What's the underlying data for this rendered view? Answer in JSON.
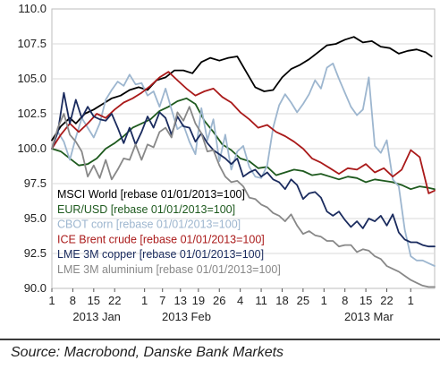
{
  "source": "Source: Macrobond, Danske Bank Markets",
  "chart_data": {
    "type": "line",
    "ylim": [
      90,
      110
    ],
    "y_ticks": [
      "110.0",
      "107.5",
      "105.0",
      "102.5",
      "100.0",
      "97.5",
      "95.0",
      "92.5",
      "90.0"
    ],
    "y_tick_values": [
      110,
      107.5,
      105,
      102.5,
      100,
      97.5,
      95,
      92.5,
      90
    ],
    "x_ticks": [
      {
        "day": 1,
        "label": "1"
      },
      {
        "day": 8,
        "label": "8"
      },
      {
        "day": 15,
        "label": "15"
      },
      {
        "day": 22,
        "label": "22"
      },
      {
        "day": 32,
        "label": "1"
      },
      {
        "day": 38,
        "label": "7"
      },
      {
        "day": 44,
        "label": "13"
      },
      {
        "day": 50,
        "label": "19"
      },
      {
        "day": 57,
        "label": "26"
      },
      {
        "day": 64,
        "label": "4"
      },
      {
        "day": 71,
        "label": "11"
      },
      {
        "day": 78,
        "label": "18"
      },
      {
        "day": 85,
        "label": "25"
      },
      {
        "day": 92,
        "label": "1"
      },
      {
        "day": 99,
        "label": "8"
      },
      {
        "day": 106,
        "label": "15"
      },
      {
        "day": 113,
        "label": "22"
      },
      {
        "day": 121,
        "label": "1"
      }
    ],
    "months": [
      {
        "label": "2013 Jan",
        "day": 16
      },
      {
        "label": "2013 Feb",
        "day": 46
      },
      {
        "label": "2013 Mar",
        "day": 107
      }
    ],
    "x_range": [
      1,
      129
    ],
    "grid": true,
    "legend_position": "bottom-left",
    "series": [
      {
        "name": "MSCI World [rebase 01/01/2013=100]",
        "color": "#000000",
        "x": [
          1,
          4,
          7,
          9,
          12,
          15,
          18,
          21,
          24,
          27,
          30,
          33,
          36,
          39,
          42,
          45,
          48,
          51,
          54,
          57,
          60,
          63,
          66,
          69,
          72,
          75,
          78,
          81,
          84,
          87,
          90,
          93,
          96,
          99,
          102,
          105,
          108,
          111,
          114,
          117,
          120,
          123,
          126,
          128
        ],
        "y": [
          100.6,
          101.6,
          102.2,
          101.8,
          102.5,
          102.8,
          103.2,
          103.6,
          103.8,
          104.2,
          104.4,
          104.2,
          104.9,
          105.1,
          105.6,
          105.6,
          105.4,
          106.2,
          106.5,
          106.3,
          106.5,
          106.6,
          105.5,
          104.4,
          104.1,
          104.2,
          105.1,
          105.7,
          106.0,
          106.4,
          106.9,
          107.4,
          107.5,
          107.8,
          108.0,
          107.6,
          107.7,
          107.3,
          107.2,
          106.8,
          107.0,
          107.1,
          106.9,
          106.6
        ]
      },
      {
        "name": "EUR/USD [rebase 01/01/2013=100]",
        "color": "#1e5a1e",
        "x": [
          1,
          4,
          7,
          10,
          13,
          16,
          19,
          22,
          25,
          28,
          31,
          34,
          37,
          40,
          43,
          46,
          49,
          52,
          55,
          58,
          61,
          64,
          67,
          70,
          73,
          76,
          79,
          82,
          85,
          88,
          91,
          94,
          97,
          100,
          103,
          106,
          109,
          112,
          115,
          118,
          121,
          124,
          127,
          129
        ],
        "y": [
          100.0,
          99.8,
          99.3,
          98.8,
          98.9,
          99.3,
          100.0,
          100.4,
          100.9,
          101.5,
          101.8,
          102.1,
          102.7,
          103.0,
          103.4,
          103.6,
          103.2,
          102.0,
          101.2,
          100.3,
          99.9,
          99.3,
          99.1,
          98.6,
          98.7,
          98.1,
          98.3,
          98.5,
          98.4,
          98.1,
          98.2,
          98.0,
          97.8,
          98.0,
          97.9,
          97.6,
          97.8,
          97.7,
          97.6,
          97.4,
          97.1,
          97.3,
          97.2,
          97.1
        ]
      },
      {
        "name": "CBOT corn [rebase 01/01/2013=100]",
        "color": "#9db6cf",
        "x": [
          1,
          3,
          5,
          7,
          9,
          11,
          13,
          15,
          17,
          19,
          21,
          23,
          25,
          27,
          29,
          31,
          33,
          35,
          37,
          39,
          41,
          43,
          45,
          47,
          49,
          51,
          53,
          55,
          57,
          59,
          61,
          63,
          65,
          67,
          69,
          71,
          73,
          75,
          77,
          79,
          81,
          83,
          85,
          87,
          89,
          91,
          93,
          95,
          97,
          99,
          101,
          103,
          105,
          107,
          109,
          111,
          113,
          115,
          117,
          119,
          121,
          123,
          125,
          127,
          129
        ],
        "y": [
          100.0,
          101.2,
          100.5,
          99.2,
          100.8,
          102.2,
          101.5,
          100.8,
          101.8,
          103.5,
          104.2,
          104.8,
          104.5,
          105.3,
          104.6,
          104.7,
          103.8,
          104.1,
          103.0,
          104.3,
          102.8,
          101.4,
          101.7,
          100.5,
          99.6,
          102.9,
          100.6,
          102.1,
          99.1,
          101.0,
          98.5,
          99.8,
          100.2,
          98.7,
          98.0,
          97.9,
          98.8,
          101.5,
          103.1,
          103.9,
          103.3,
          102.6,
          103.2,
          103.9,
          104.9,
          104.3,
          105.8,
          106.1,
          105.0,
          104.0,
          103.0,
          102.4,
          102.8,
          105.1,
          100.2,
          99.7,
          100.6,
          97.8,
          97.3,
          94.2,
          92.3,
          92.0,
          92.0,
          91.8,
          91.6
        ]
      },
      {
        "name": "ICE Brent crude [rebase 01/01/2013=100]",
        "color": "#aa1a1a",
        "x": [
          1,
          4,
          7,
          10,
          13,
          16,
          19,
          22,
          25,
          28,
          31,
          34,
          37,
          40,
          43,
          46,
          49,
          52,
          55,
          58,
          61,
          64,
          67,
          70,
          73,
          76,
          79,
          82,
          85,
          88,
          91,
          94,
          97,
          100,
          103,
          106,
          109,
          112,
          115,
          118,
          121,
          124,
          127,
          129
        ],
        "y": [
          100.0,
          101.0,
          101.8,
          101.2,
          101.8,
          102.5,
          102.2,
          102.8,
          103.3,
          103.6,
          104.0,
          104.5,
          105.1,
          105.5,
          104.9,
          104.3,
          103.8,
          104.1,
          104.3,
          103.7,
          103.3,
          102.6,
          102.1,
          101.5,
          101.7,
          101.2,
          100.9,
          100.5,
          100.0,
          99.3,
          99.0,
          98.6,
          98.2,
          98.6,
          98.5,
          98.9,
          98.3,
          98.6,
          98.0,
          98.5,
          99.9,
          99.4,
          96.8,
          97.0
        ]
      },
      {
        "name": "LME 3M copper [rebase 01/01/2013=100]",
        "color": "#1a2b5e",
        "x": [
          1,
          3,
          5,
          7,
          9,
          11,
          13,
          15,
          17,
          19,
          21,
          23,
          25,
          27,
          29,
          31,
          33,
          35,
          37,
          39,
          41,
          43,
          45,
          47,
          49,
          51,
          53,
          55,
          57,
          59,
          61,
          63,
          65,
          67,
          69,
          71,
          73,
          75,
          77,
          79,
          81,
          83,
          85,
          87,
          89,
          91,
          93,
          95,
          97,
          99,
          101,
          103,
          105,
          107,
          109,
          111,
          113,
          115,
          117,
          119,
          121,
          123,
          125,
          127,
          129
        ],
        "y": [
          100.0,
          101.2,
          104.0,
          101.8,
          103.5,
          102.2,
          103.0,
          102.3,
          102.1,
          102.0,
          102.5,
          101.5,
          100.4,
          101.5,
          100.3,
          101.2,
          102.3,
          101.5,
          102.6,
          102.2,
          101.0,
          102.3,
          101.6,
          101.5,
          100.5,
          101.1,
          100.4,
          99.9,
          99.6,
          99.3,
          98.9,
          99.3,
          98.0,
          98.3,
          98.5,
          98.0,
          98.3,
          97.8,
          97.6,
          97.1,
          97.8,
          97.4,
          96.4,
          96.8,
          96.9,
          96.5,
          95.5,
          95.2,
          95.5,
          94.9,
          94.4,
          94.8,
          94.3,
          95.0,
          94.8,
          95.2,
          94.5,
          95.3,
          94.0,
          93.5,
          93.3,
          93.3,
          93.1,
          93.0,
          93.0
        ]
      },
      {
        "name": "LME 3M aluminium [rebase 01/01/2013=100]",
        "color": "#888888",
        "x": [
          1,
          3,
          5,
          7,
          9,
          11,
          13,
          15,
          17,
          19,
          21,
          23,
          25,
          27,
          29,
          31,
          33,
          35,
          37,
          39,
          41,
          43,
          45,
          47,
          49,
          51,
          53,
          55,
          57,
          59,
          61,
          63,
          65,
          67,
          69,
          71,
          73,
          75,
          77,
          79,
          81,
          83,
          85,
          87,
          89,
          91,
          93,
          95,
          97,
          99,
          101,
          103,
          105,
          107,
          109,
          111,
          113,
          115,
          117,
          119,
          121,
          123,
          125,
          127,
          129
        ],
        "y": [
          100.0,
          101.5,
          102.5,
          101.0,
          100.5,
          99.8,
          98.0,
          98.8,
          97.9,
          99.2,
          97.8,
          98.5,
          99.3,
          99.2,
          100.3,
          99.2,
          100.3,
          100.1,
          101.2,
          101.5,
          100.8,
          102.6,
          102.0,
          103.0,
          101.8,
          101.1,
          99.8,
          99.9,
          98.8,
          98.0,
          97.6,
          97.7,
          97.3,
          96.5,
          96.4,
          96.0,
          95.8,
          95.4,
          95.2,
          94.8,
          95.3,
          94.5,
          93.9,
          94.1,
          93.8,
          93.7,
          93.4,
          93.4,
          93.0,
          93.1,
          93.1,
          92.6,
          92.8,
          92.7,
          92.3,
          92.1,
          91.6,
          91.4,
          91.2,
          90.9,
          90.6,
          90.4,
          90.2,
          90.1,
          90.1
        ]
      }
    ]
  }
}
